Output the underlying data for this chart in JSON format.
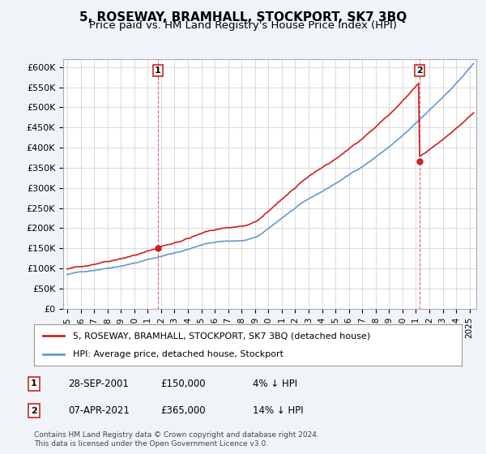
{
  "title": "5, ROSEWAY, BRAMHALL, STOCKPORT, SK7 3BQ",
  "subtitle": "Price paid vs. HM Land Registry's House Price Index (HPI)",
  "ylabel_ticks": [
    "£0",
    "£50K",
    "£100K",
    "£150K",
    "£200K",
    "£250K",
    "£300K",
    "£350K",
    "£400K",
    "£450K",
    "£500K",
    "£550K",
    "£600K"
  ],
  "ytick_values": [
    0,
    50000,
    100000,
    150000,
    200000,
    250000,
    300000,
    350000,
    400000,
    450000,
    500000,
    550000,
    600000
  ],
  "ylim": [
    0,
    620000
  ],
  "xlim_start": 1995.0,
  "xlim_end": 2025.5,
  "background_color": "#f0f4f8",
  "plot_bg_color": "#ffffff",
  "grid_color": "#cccccc",
  "hpi_color": "#6699cc",
  "price_color": "#cc2222",
  "sale1_date": 2001.75,
  "sale1_price": 150000,
  "sale1_label": "1",
  "sale2_date": 2021.27,
  "sale2_price": 365000,
  "sale2_label": "2",
  "legend_line1": "5, ROSEWAY, BRAMHALL, STOCKPORT, SK7 3BQ (detached house)",
  "legend_line2": "HPI: Average price, detached house, Stockport",
  "table_rows": [
    [
      "1",
      "28-SEP-2001",
      "£150,000",
      "4% ↓ HPI"
    ],
    [
      "2",
      "07-APR-2021",
      "£365,000",
      "14% ↓ HPI"
    ]
  ],
  "footnote": "Contains HM Land Registry data © Crown copyright and database right 2024.\nThis data is licensed under the Open Government Licence v3.0.",
  "title_fontsize": 11,
  "subtitle_fontsize": 9.5
}
